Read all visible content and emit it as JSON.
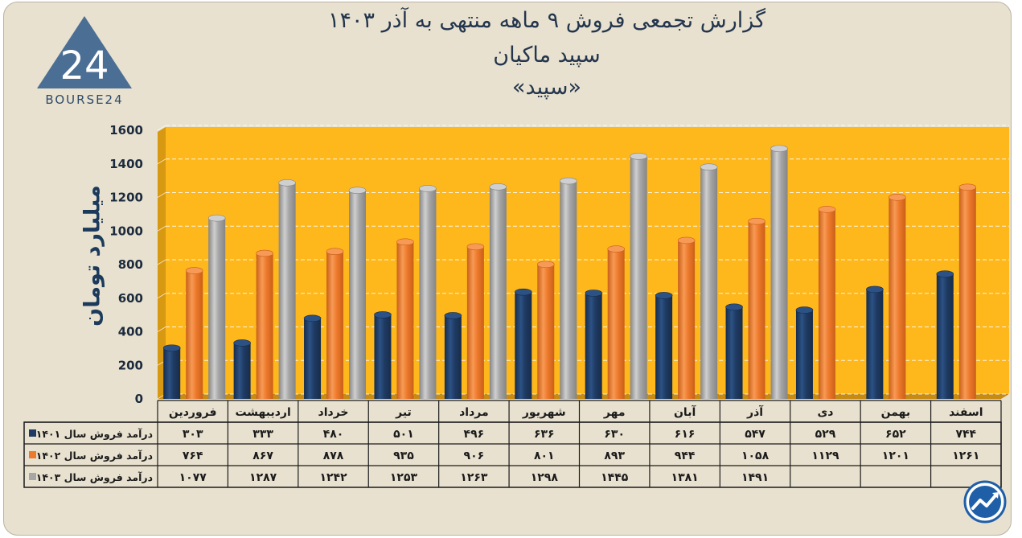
{
  "chart_data": {
    "type": "bar",
    "title": "گزارش تجمعی فروش ۹ ماهه منتهی به آذر ۱۴۰۳",
    "subtitle": "سپید ماکیان",
    "subtitle2": "«سپید»",
    "ylabel": "میلیارد تومان",
    "ylim": [
      0,
      1600
    ],
    "yticks": [
      0,
      200,
      400,
      600,
      800,
      1000,
      1200,
      1400,
      1600
    ],
    "ytick_labels": [
      "0",
      "200",
      "400",
      "600",
      "800",
      "1000",
      "1200",
      "1400",
      "1600"
    ],
    "categories": [
      "فروردین",
      "اردیبهشت",
      "خرداد",
      "تیر",
      "مرداد",
      "شهریور",
      "مهر",
      "آبان",
      "آذر",
      "دی",
      "بهمن",
      "اسفند"
    ],
    "series": [
      {
        "name": "درآمد فروش سال ۱۴۰۱",
        "color": "#1f3b63",
        "values": [
          303,
          333,
          480,
          501,
          496,
          636,
          630,
          616,
          547,
          529,
          652,
          744
        ],
        "labels": [
          "۳۰۳",
          "۳۳۳",
          "۴۸۰",
          "۵۰۱",
          "۴۹۶",
          "۶۳۶",
          "۶۳۰",
          "۶۱۶",
          "۵۴۷",
          "۵۲۹",
          "۶۵۲",
          "۷۴۴"
        ]
      },
      {
        "name": "درآمد فروش سال ۱۴۰۲",
        "color": "#ee7a2c",
        "values": [
          764,
          867,
          878,
          935,
          906,
          801,
          893,
          944,
          1058,
          1129,
          1201,
          1261
        ],
        "labels": [
          "۷۶۴",
          "۸۶۷",
          "۸۷۸",
          "۹۳۵",
          "۹۰۶",
          "۸۰۱",
          "۸۹۳",
          "۹۴۴",
          "۱۰۵۸",
          "۱۱۲۹",
          "۱۲۰۱",
          "۱۲۶۱"
        ]
      },
      {
        "name": "درآمد فروش سال ۱۴۰۳",
        "color": "#a6a6a6",
        "values": [
          1077,
          1287,
          1242,
          1253,
          1263,
          1298,
          1445,
          1381,
          1491,
          null,
          null,
          null
        ],
        "labels": [
          "۱۰۷۷",
          "۱۲۸۷",
          "۱۲۴۲",
          "۱۲۵۳",
          "۱۲۶۳",
          "۱۲۹۸",
          "۱۴۴۵",
          "۱۳۸۱",
          "۱۴۹۱",
          "",
          "",
          ""
        ]
      }
    ],
    "plot_background": "#ffb81c",
    "grid": true,
    "legend": "table-below"
  },
  "logo": {
    "text": "BOURSE24",
    "mark": "24"
  },
  "colors": {
    "navy": "#1f3b63",
    "orange": "#ee7a2c",
    "gray": "#a6a6a6",
    "gold": "#ffb81c",
    "frame": "#e8e1cf"
  }
}
